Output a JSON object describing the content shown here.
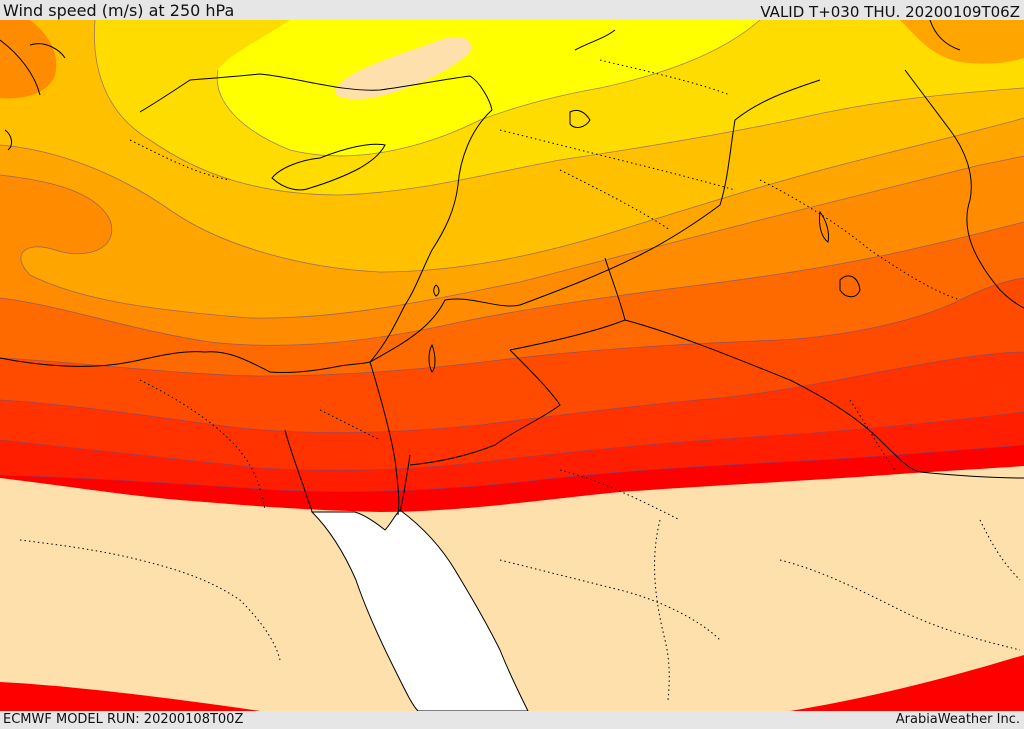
{
  "header": {
    "title": "Wind speed (m/s) at 250 hPa",
    "valid": "VALID T+030 THU. 20200109T06Z"
  },
  "footer": {
    "model_run": "ECMWF MODEL RUN: 20200108T00Z",
    "credit": "ArabiaWeather Inc."
  },
  "colors": {
    "below_threshold": "#fde0ac",
    "yellow": "#ffff00",
    "gold": "#ffdc00",
    "amber": "#ffc000",
    "orange_light": "#ffa500",
    "orange": "#ff8c00",
    "orange_dark": "#ff6a00",
    "red_orange": "#ff4b00",
    "red_orange_dark": "#ff3200",
    "red_light": "#ff1e00",
    "red": "#ff0000",
    "sea": "#ffffff",
    "contour": "#6a4a8a",
    "border": "#000000"
  }
}
